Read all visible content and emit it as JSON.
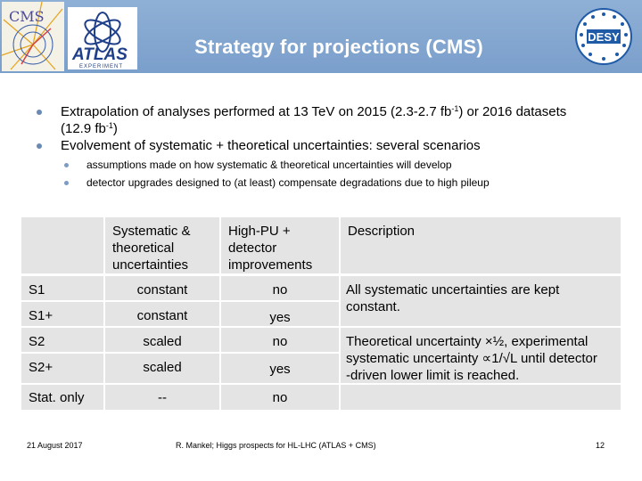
{
  "header": {
    "title": "Strategy for projections (CMS)",
    "logos": {
      "cms": "CMS",
      "atlas": "ATLAS",
      "atlas_sub": "EXPERIMENT",
      "desy": "DESY"
    }
  },
  "bullets": [
    {
      "pre": "Extrapolation of analyses performed at 13 TeV on 2015 (2.3-2.7 fb",
      "sup": "-1",
      "post": ") or 2016 datasets",
      "line2_pre": "(12.9 fb",
      "line2_sup": "-1",
      "line2_post": ")"
    },
    {
      "text": "Evolvement of systematic + theoretical uncertainties: several scenarios"
    }
  ],
  "sub_bullets": [
    "assumptions made on how systematic & theoretical uncertainties will develop",
    "detector upgrades designed to (at least) compensate degradations due to high pileup"
  ],
  "table": {
    "headers": {
      "sys": [
        "Systematic &",
        "theoretical",
        "uncertainties"
      ],
      "hpu": [
        "High-PU +",
        "detector",
        "improvements"
      ],
      "desc": "Description"
    },
    "rows": [
      {
        "label": "S1",
        "sys": "constant",
        "hpu": "no"
      },
      {
        "label": "S1+",
        "sys": "constant",
        "hpu": "yes"
      },
      {
        "label": "S2",
        "sys": "scaled",
        "hpu": "no"
      },
      {
        "label": "S2+",
        "sys": "scaled",
        "hpu": "yes"
      },
      {
        "label": "Stat. only",
        "sys": "--",
        "hpu": "no"
      }
    ],
    "desc1": "All systematic uncertainties are kept constant.",
    "desc2_lines": [
      "Theoretical uncertainty ×½, experimental",
      "systematic uncertainty ∝1/√L until detector",
      "-driven lower limit is reached."
    ]
  },
  "footer": {
    "date": "21 August 2017",
    "center": "R. Mankel; Higgs prospects for HL-LHC (ATLAS + CMS)",
    "page": "12"
  },
  "colors": {
    "header": "#7fa4cd",
    "cell": "#e4e4e4",
    "bullet": "#6a8ab4"
  }
}
